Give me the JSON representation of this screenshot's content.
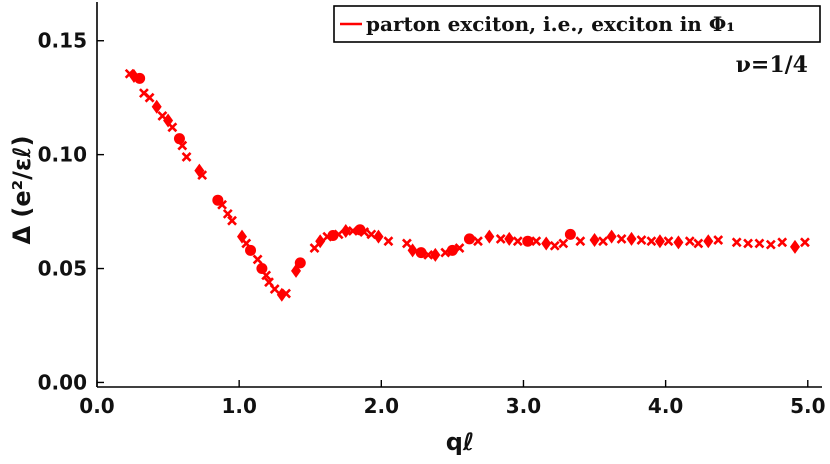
{
  "chart_data": {
    "type": "scatter",
    "title": "",
    "xlabel": "qℓ",
    "ylabel": "Δ (e²/εℓ)",
    "xlim": [
      0.0,
      5.1
    ],
    "ylim": [
      -0.002,
      0.167
    ],
    "x_ticks": [
      0,
      1,
      2,
      3,
      4,
      5
    ],
    "x_tick_labels": [
      "0.0",
      "1.0",
      "2.0",
      "3.0",
      "4.0",
      "5.0"
    ],
    "y_ticks": [
      0.0,
      0.05,
      0.1,
      0.15
    ],
    "y_tick_labels": [
      "0.00",
      "0.05",
      "0.10",
      "0.15"
    ],
    "grid": false,
    "legend": {
      "position": "top-right",
      "entries": [
        {
          "label": "parton exciton, i.e., exciton in Φ₁",
          "color": "#ff0000"
        }
      ]
    },
    "annotation": "ν=1/4",
    "series": [
      {
        "name": "parton exciton, i.e., exciton in Φ₁",
        "color": "#ff0000",
        "points": [
          {
            "x": 0.23,
            "y": 0.1355,
            "m": "x"
          },
          {
            "x": 0.26,
            "y": 0.1345,
            "m": "d"
          },
          {
            "x": 0.3,
            "y": 0.1335,
            "m": "o"
          },
          {
            "x": 0.33,
            "y": 0.127,
            "m": "x"
          },
          {
            "x": 0.37,
            "y": 0.125,
            "m": "x"
          },
          {
            "x": 0.42,
            "y": 0.121,
            "m": "d"
          },
          {
            "x": 0.46,
            "y": 0.117,
            "m": "x"
          },
          {
            "x": 0.5,
            "y": 0.115,
            "m": "d"
          },
          {
            "x": 0.53,
            "y": 0.112,
            "m": "x"
          },
          {
            "x": 0.58,
            "y": 0.107,
            "m": "o"
          },
          {
            "x": 0.6,
            "y": 0.104,
            "m": "x"
          },
          {
            "x": 0.63,
            "y": 0.099,
            "m": "x"
          },
          {
            "x": 0.72,
            "y": 0.093,
            "m": "d"
          },
          {
            "x": 0.74,
            "y": 0.091,
            "m": "x"
          },
          {
            "x": 0.85,
            "y": 0.08,
            "m": "o"
          },
          {
            "x": 0.88,
            "y": 0.078,
            "m": "x"
          },
          {
            "x": 0.92,
            "y": 0.074,
            "m": "x"
          },
          {
            "x": 0.95,
            "y": 0.071,
            "m": "x"
          },
          {
            "x": 1.02,
            "y": 0.064,
            "m": "d"
          },
          {
            "x": 1.05,
            "y": 0.061,
            "m": "x"
          },
          {
            "x": 1.08,
            "y": 0.058,
            "m": "o"
          },
          {
            "x": 1.13,
            "y": 0.054,
            "m": "x"
          },
          {
            "x": 1.16,
            "y": 0.05,
            "m": "o"
          },
          {
            "x": 1.19,
            "y": 0.047,
            "m": "x"
          },
          {
            "x": 1.21,
            "y": 0.044,
            "m": "x"
          },
          {
            "x": 1.25,
            "y": 0.041,
            "m": "x"
          },
          {
            "x": 1.3,
            "y": 0.0385,
            "m": "d"
          },
          {
            "x": 1.33,
            "y": 0.039,
            "m": "x"
          },
          {
            "x": 1.4,
            "y": 0.049,
            "m": "d"
          },
          {
            "x": 1.43,
            "y": 0.0525,
            "m": "o"
          },
          {
            "x": 1.53,
            "y": 0.059,
            "m": "x"
          },
          {
            "x": 1.57,
            "y": 0.062,
            "m": "d"
          },
          {
            "x": 1.62,
            "y": 0.064,
            "m": "x"
          },
          {
            "x": 1.66,
            "y": 0.0645,
            "m": "o"
          },
          {
            "x": 1.7,
            "y": 0.065,
            "m": "x"
          },
          {
            "x": 1.75,
            "y": 0.0665,
            "m": "d"
          },
          {
            "x": 1.8,
            "y": 0.0665,
            "m": "x"
          },
          {
            "x": 1.85,
            "y": 0.067,
            "m": "o"
          },
          {
            "x": 1.88,
            "y": 0.066,
            "m": "x"
          },
          {
            "x": 1.93,
            "y": 0.065,
            "m": "x"
          },
          {
            "x": 1.98,
            "y": 0.064,
            "m": "d"
          },
          {
            "x": 2.05,
            "y": 0.062,
            "m": "x"
          },
          {
            "x": 2.18,
            "y": 0.061,
            "m": "x"
          },
          {
            "x": 2.22,
            "y": 0.058,
            "m": "d"
          },
          {
            "x": 2.28,
            "y": 0.057,
            "m": "o"
          },
          {
            "x": 2.33,
            "y": 0.056,
            "m": "x"
          },
          {
            "x": 2.38,
            "y": 0.056,
            "m": "d"
          },
          {
            "x": 2.45,
            "y": 0.057,
            "m": "x"
          },
          {
            "x": 2.5,
            "y": 0.058,
            "m": "o"
          },
          {
            "x": 2.55,
            "y": 0.059,
            "m": "x"
          },
          {
            "x": 2.62,
            "y": 0.063,
            "m": "o"
          },
          {
            "x": 2.68,
            "y": 0.062,
            "m": "x"
          },
          {
            "x": 2.76,
            "y": 0.064,
            "m": "d"
          },
          {
            "x": 2.84,
            "y": 0.063,
            "m": "x"
          },
          {
            "x": 2.9,
            "y": 0.063,
            "m": "d"
          },
          {
            "x": 2.96,
            "y": 0.062,
            "m": "x"
          },
          {
            "x": 3.03,
            "y": 0.062,
            "m": "o"
          },
          {
            "x": 3.09,
            "y": 0.062,
            "m": "x"
          },
          {
            "x": 3.16,
            "y": 0.061,
            "m": "d"
          },
          {
            "x": 3.22,
            "y": 0.06,
            "m": "x"
          },
          {
            "x": 3.28,
            "y": 0.061,
            "m": "x"
          },
          {
            "x": 3.33,
            "y": 0.065,
            "m": "o"
          },
          {
            "x": 3.4,
            "y": 0.062,
            "m": "x"
          },
          {
            "x": 3.5,
            "y": 0.0625,
            "m": "d"
          },
          {
            "x": 3.56,
            "y": 0.062,
            "m": "x"
          },
          {
            "x": 3.62,
            "y": 0.064,
            "m": "d"
          },
          {
            "x": 3.69,
            "y": 0.063,
            "m": "x"
          },
          {
            "x": 3.76,
            "y": 0.063,
            "m": "d"
          },
          {
            "x": 3.83,
            "y": 0.0625,
            "m": "x"
          },
          {
            "x": 3.9,
            "y": 0.062,
            "m": "x"
          },
          {
            "x": 3.96,
            "y": 0.062,
            "m": "d"
          },
          {
            "x": 4.02,
            "y": 0.062,
            "m": "x"
          },
          {
            "x": 4.09,
            "y": 0.0615,
            "m": "d"
          },
          {
            "x": 4.17,
            "y": 0.062,
            "m": "x"
          },
          {
            "x": 4.23,
            "y": 0.061,
            "m": "x"
          },
          {
            "x": 4.3,
            "y": 0.062,
            "m": "d"
          },
          {
            "x": 4.37,
            "y": 0.0625,
            "m": "x"
          },
          {
            "x": 4.5,
            "y": 0.0615,
            "m": "x"
          },
          {
            "x": 4.58,
            "y": 0.061,
            "m": "x"
          },
          {
            "x": 4.66,
            "y": 0.061,
            "m": "x"
          },
          {
            "x": 4.74,
            "y": 0.0605,
            "m": "x"
          },
          {
            "x": 4.82,
            "y": 0.0615,
            "m": "x"
          },
          {
            "x": 4.91,
            "y": 0.0595,
            "m": "d"
          },
          {
            "x": 4.98,
            "y": 0.0615,
            "m": "x"
          }
        ]
      }
    ]
  }
}
